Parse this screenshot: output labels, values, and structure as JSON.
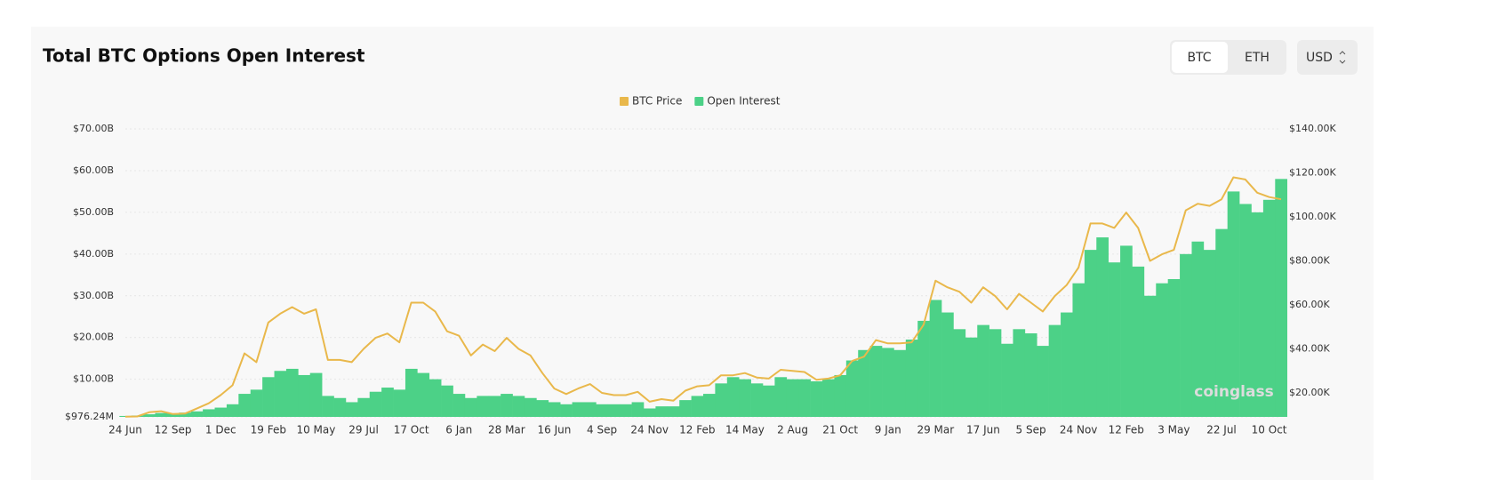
{
  "controls": {
    "tabs": [
      "BTC",
      "ETH"
    ],
    "unit": "USD"
  },
  "chart_data": {
    "type": "combo",
    "title": "Total BTC Options Open Interest",
    "watermark": "coinglass",
    "categories": [
      "24 Jun",
      null,
      null,
      null,
      "12 Sep",
      null,
      null,
      null,
      "1 Dec",
      null,
      null,
      null,
      "19 Feb",
      null,
      null,
      null,
      "10 May",
      null,
      null,
      null,
      "29 Jul",
      null,
      null,
      null,
      "17 Oct",
      null,
      null,
      null,
      "6 Jan",
      null,
      null,
      null,
      "28 Mar",
      null,
      null,
      null,
      "16 Jun",
      null,
      null,
      null,
      "4 Sep",
      null,
      null,
      null,
      "24 Nov",
      null,
      null,
      null,
      "12 Feb",
      null,
      null,
      null,
      "14 May",
      null,
      null,
      null,
      "2 Aug",
      null,
      null,
      null,
      "21 Oct",
      null,
      null,
      null,
      "9 Jan",
      null,
      null,
      null,
      "29 Mar",
      null,
      null,
      null,
      "17 Jun",
      null,
      null,
      null,
      "5 Sep",
      null,
      null,
      null,
      "24 Nov",
      null,
      null,
      null,
      "12 Feb",
      null,
      null,
      null,
      "3 May",
      null,
      null,
      null,
      "22 Jul",
      null,
      null,
      null,
      "10 Oct",
      null
    ],
    "series": [
      {
        "name": "BTC Price",
        "type": "line",
        "axis": "y2",
        "color": "#e9b84b",
        "values": [
          9.2,
          9.3,
          11.2,
          11.7,
          10.4,
          10.6,
          12.9,
          15.3,
          19.0,
          23.5,
          38,
          34,
          52,
          56,
          59,
          56,
          58,
          35,
          35,
          34,
          40,
          45,
          47,
          43,
          61,
          61,
          57,
          48,
          46,
          37,
          42,
          39,
          45,
          40,
          37,
          29,
          22,
          19.5,
          22,
          24,
          20,
          19,
          19,
          20.5,
          16,
          17.2,
          16.5,
          21,
          23,
          23.5,
          28,
          28,
          29,
          27,
          26.5,
          30.5,
          30,
          29.5,
          26,
          26.5,
          28,
          34.5,
          36.5,
          44,
          42.5,
          42.5,
          43,
          51,
          71,
          68,
          66,
          61,
          68,
          64,
          58,
          65,
          61,
          57,
          64,
          69,
          77,
          97,
          97,
          95,
          102,
          95,
          80,
          83,
          85,
          103,
          106,
          105,
          108,
          118,
          117,
          111,
          109,
          108
        ]
      },
      {
        "name": "Open Interest",
        "type": "bar",
        "axis": "y",
        "color": "#4cd187",
        "values": [
          1.2,
          1.3,
          1.6,
          1.9,
          1.8,
          2.0,
          2.3,
          2.8,
          3.2,
          4.0,
          6.5,
          7.5,
          10.5,
          12.0,
          12.5,
          11.0,
          11.5,
          6.0,
          5.5,
          4.5,
          5.5,
          7.0,
          8.0,
          7.5,
          12.5,
          11.5,
          10.0,
          8.5,
          6.5,
          5.5,
          6.0,
          6.0,
          6.5,
          6.0,
          5.5,
          5.0,
          4.5,
          4.0,
          4.5,
          4.5,
          4.0,
          4.0,
          4.0,
          4.5,
          3.0,
          3.5,
          3.5,
          5.0,
          6.0,
          6.5,
          9.0,
          10.5,
          10.0,
          9.0,
          8.5,
          10.5,
          10.0,
          10.0,
          9.5,
          10.0,
          11.0,
          14.5,
          17.0,
          18.0,
          17.5,
          17.0,
          19.5,
          24.0,
          29.0,
          26.0,
          22.0,
          20.0,
          23.0,
          22.0,
          18.5,
          22.0,
          21.0,
          18.0,
          23.0,
          26.0,
          33.0,
          41.0,
          44.0,
          38.0,
          42.0,
          37.0,
          30.0,
          33.0,
          34.0,
          40.0,
          43.0,
          41.0,
          46.0,
          55.0,
          52.0,
          50.0,
          53.0,
          58.0
        ]
      }
    ],
    "ylim": [
      0.97624,
      70
    ],
    "yticks": [
      {
        "value": 0.97624,
        "label": "$976.24M"
      },
      {
        "value": 10,
        "label": "$10.00B"
      },
      {
        "value": 20,
        "label": "$20.00B"
      },
      {
        "value": 30,
        "label": "$30.00B"
      },
      {
        "value": 40,
        "label": "$40.00B"
      },
      {
        "value": 50,
        "label": "$50.00B"
      },
      {
        "value": 60,
        "label": "$60.00B"
      },
      {
        "value": 70,
        "label": "$70.00B"
      }
    ],
    "y2lim": [
      9.1,
      140
    ],
    "y2ticks": [
      {
        "value": 20,
        "label": "$20.00K"
      },
      {
        "value": 40,
        "label": "$40.00K"
      },
      {
        "value": 60,
        "label": "$60.00K"
      },
      {
        "value": 80,
        "label": "$80.00K"
      },
      {
        "value": 100,
        "label": "$100.00K"
      },
      {
        "value": 120,
        "label": "$120.00K"
      },
      {
        "value": 140,
        "label": "$140.00K"
      }
    ],
    "grid": true,
    "legend": "top"
  }
}
